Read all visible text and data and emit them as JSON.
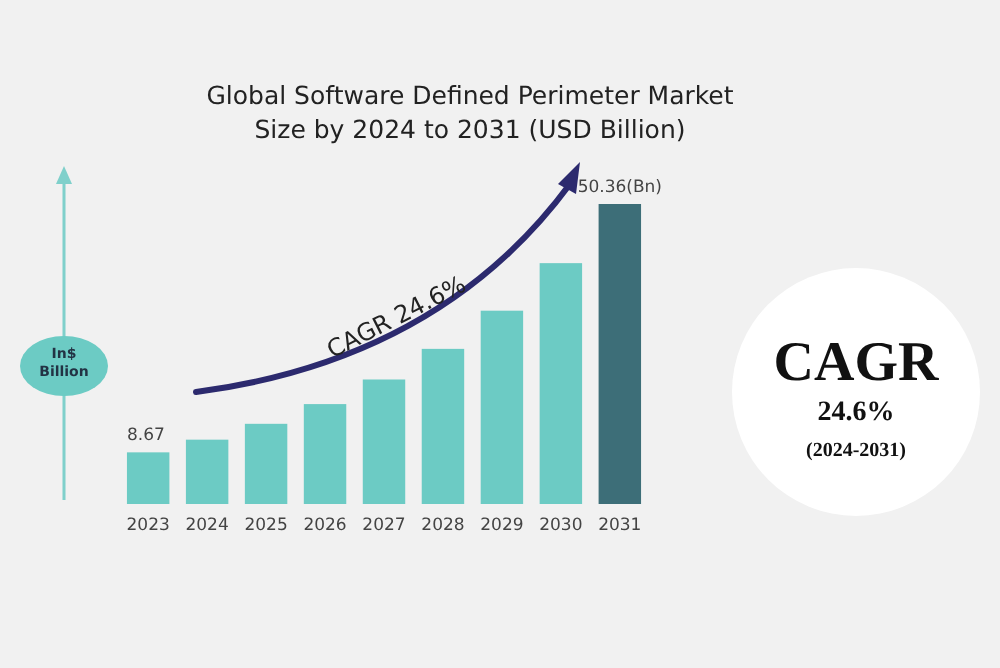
{
  "chart_data": {
    "type": "bar",
    "title": "Global Software Defined Perimeter Market\nSize by 2024 to 2031 (USD Billion)",
    "ylabel": "In$\nBillion",
    "categories": [
      "2023",
      "2024",
      "2025",
      "2026",
      "2027",
      "2028",
      "2029",
      "2030",
      "2031"
    ],
    "values": [
      8.67,
      10.8,
      13.46,
      16.77,
      20.9,
      26.04,
      32.45,
      40.43,
      50.36
    ],
    "colors": [
      "#6ccbc4",
      "#6ccbc4",
      "#6ccbc4",
      "#6ccbc4",
      "#6ccbc4",
      "#6ccbc4",
      "#6ccbc4",
      "#6ccbc4",
      "#3d6e78"
    ],
    "value_labels": [
      "8.67",
      null,
      null,
      null,
      null,
      null,
      null,
      null,
      "50.36(Bn)"
    ],
    "annotations": [
      "CAGR 24.6%",
      "CAGR",
      "24.6%",
      "(2024-2031)"
    ],
    "grid": false
  }
}
